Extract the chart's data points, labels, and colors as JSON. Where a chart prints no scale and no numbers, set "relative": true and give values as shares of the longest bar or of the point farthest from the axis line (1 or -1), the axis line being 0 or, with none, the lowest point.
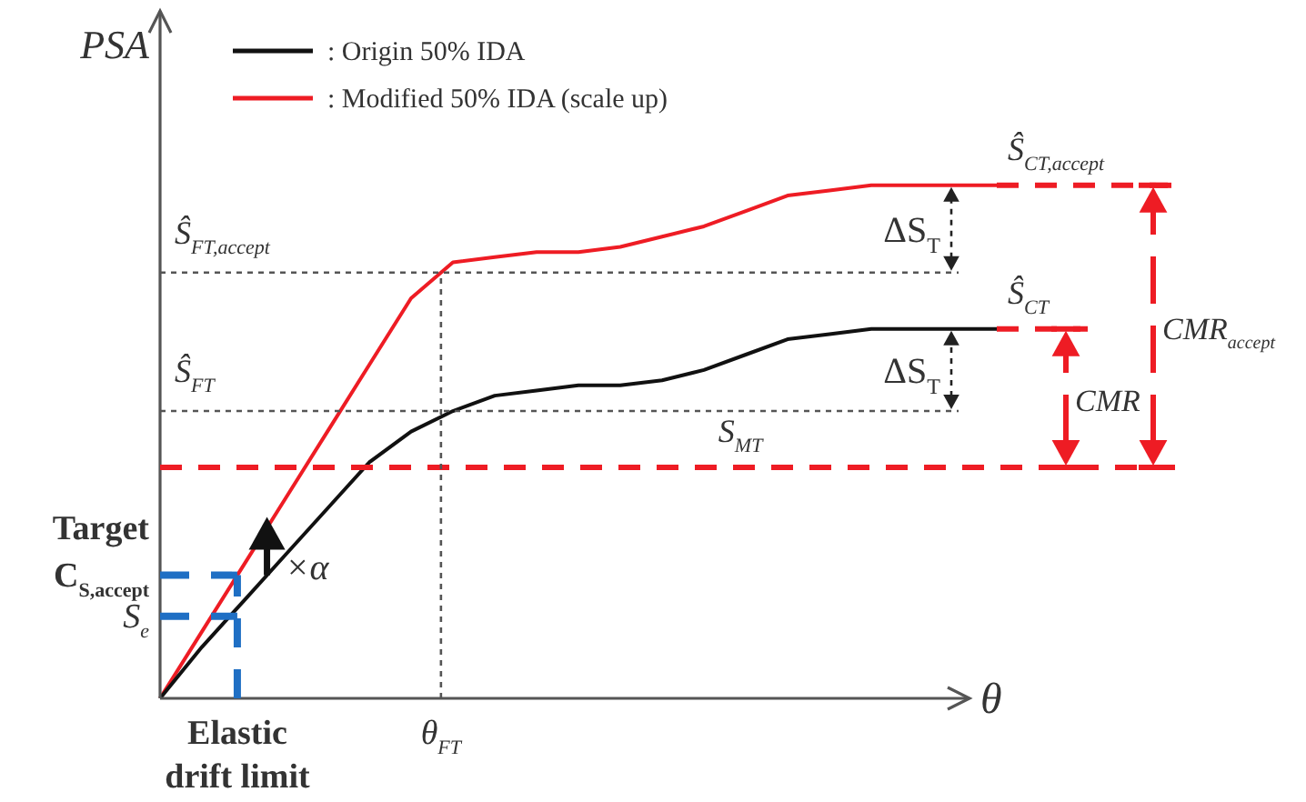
{
  "chart_data": {
    "type": "line",
    "relative": true,
    "xlabel": "θ",
    "ylabel": "PSA",
    "legend": "top left",
    "categories": [
      null,
      null,
      null,
      null,
      null,
      null,
      null,
      null,
      null,
      null,
      null,
      null,
      null,
      null,
      null,
      null,
      null,
      null,
      null,
      null,
      null
    ],
    "series": [
      {
        "name": ": Origin 50% IDA",
        "color": "#111111",
        "values": [
          0,
          0.1,
          0.19,
          0.28,
          0.37,
          0.46,
          0.52,
          0.56,
          0.59,
          0.6,
          0.61,
          0.61,
          0.62,
          0.64,
          0.67,
          0.7,
          0.71,
          0.72,
          0.72,
          0.72,
          0.72
        ]
      },
      {
        "name": ": Modified 50% IDA (scale up)",
        "color": "#ee1c24",
        "values": [
          0,
          0.13,
          0.26,
          0.39,
          0.52,
          0.65,
          0.78,
          0.85,
          0.86,
          0.87,
          0.87,
          0.88,
          0.9,
          0.92,
          0.95,
          0.98,
          0.99,
          1,
          1,
          1,
          1
        ]
      }
    ],
    "ref_lines": [
      {
        "axis": "y",
        "value": 0.45,
        "label": "S$_{MT}$",
        "color": "#ee1c24",
        "line_style": "dashed"
      },
      {
        "axis": "y",
        "value": 0.72,
        "label": "Ŝ$_{CT}$",
        "color": "#ee1c24",
        "line_style": "dashed"
      },
      {
        "axis": "y",
        "value": 1,
        "label": "Ŝ$_{CT,accept}$",
        "color": "#ee1c24",
        "line_style": "dashed"
      },
      {
        "axis": "y",
        "value": 0.83,
        "label": "Ŝ$_{FT,accept}$",
        "color": "#555555",
        "line_style": "dotted"
      },
      {
        "axis": "y",
        "value": 0.56,
        "label": "Ŝ$_{FT}$",
        "color": "#555555",
        "line_style": "dotted"
      },
      {
        "axis": "x",
        "label": "θ$_{FT}$",
        "color": "#555555",
        "line_style": "dotted"
      },
      {
        "axis": "y",
        "value": 0.24,
        "label": "Target\nC$_{S,accept}$",
        "color": "#1f6fc4",
        "line_style": "dashed"
      },
      {
        "axis": "y",
        "value": 0.16,
        "label": "S$_{e}$",
        "color": "#1f6fc4",
        "line_style": "dashed"
      },
      {
        "axis": "x",
        "label": "Elastic\ndrift limit",
        "color": "#1f6fc4",
        "line_style": "dashed"
      }
    ],
    "annotations": [
      "ΔS$_{T}$",
      "ΔS$_{T}$",
      "CMR",
      "CMR$_{accept}$",
      "×α"
    ]
  }
}
